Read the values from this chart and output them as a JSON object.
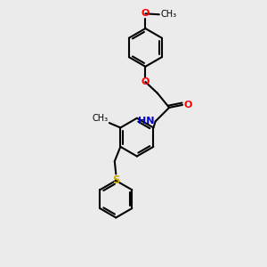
{
  "background_color": "#ebebeb",
  "bond_color": "#000000",
  "bond_width": 1.5,
  "figsize": [
    3.0,
    3.0
  ],
  "dpi": 100,
  "atom_colors": {
    "O": "#ff0000",
    "N": "#0000cc",
    "S": "#ccaa00",
    "C": "#000000",
    "H": "#000000"
  },
  "font_size": 7.5,
  "xlim": [
    0,
    10
  ],
  "ylim": [
    0,
    10
  ]
}
